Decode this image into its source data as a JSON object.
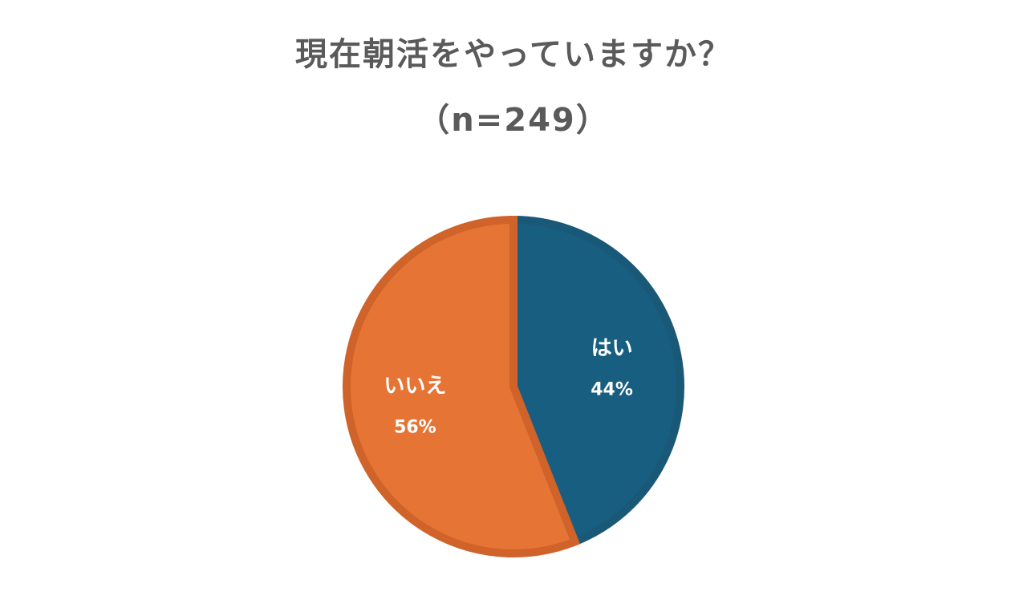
{
  "chart_data": {
    "type": "pie",
    "title": "現在朝活をやっていますか？",
    "subtitle": "（n=249）",
    "slices": [
      {
        "label": "はい",
        "value": 44,
        "value_label": "44%",
        "color": "#175e80",
        "border_color": "#1a5877"
      },
      {
        "label": "いいえ",
        "value": 56,
        "value_label": "56%",
        "color": "#e67435",
        "border_color": "#cf632a"
      }
    ],
    "start_angle_deg": 0,
    "direction": "clockwise"
  }
}
